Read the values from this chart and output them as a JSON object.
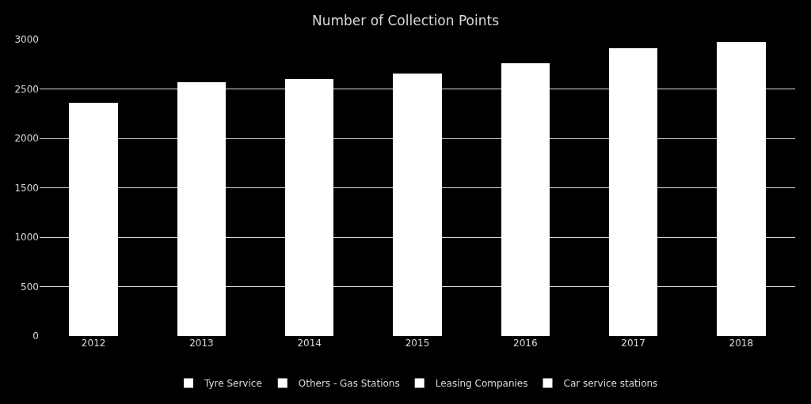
{
  "chart_data": {
    "type": "bar",
    "title": "Number of Collection Points",
    "categories": [
      "2012",
      "2013",
      "2014",
      "2015",
      "2016",
      "2017",
      "2018"
    ],
    "stacked": true,
    "series": [
      {
        "name": "Tyre Service",
        "color": "#ffffff",
        "values": [
          2360,
          2570,
          2600,
          2660,
          2760,
          2910,
          2975
        ]
      },
      {
        "name": "Others - Gas Stations",
        "color": "#ffffff",
        "values": [
          null,
          null,
          null,
          null,
          null,
          null,
          null
        ]
      },
      {
        "name": "Leasing Companies",
        "color": "#ffffff",
        "values": [
          null,
          null,
          null,
          null,
          null,
          null,
          null
        ]
      },
      {
        "name": "Car service stations",
        "color": "#ffffff",
        "values": [
          null,
          null,
          null,
          null,
          null,
          null,
          null
        ]
      }
    ],
    "ylim": [
      0,
      3000
    ],
    "yticks": [
      0,
      500,
      1000,
      1500,
      2000,
      2500,
      3000
    ],
    "grid": "y",
    "legend": "bottom"
  }
}
